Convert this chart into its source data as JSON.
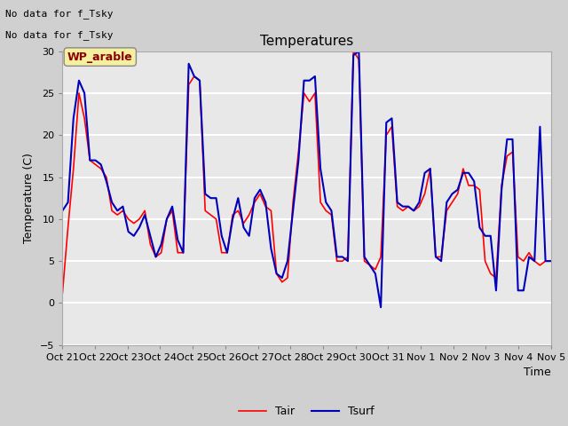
{
  "title": "Temperatures",
  "xlabel": "Time",
  "ylabel": "Temperature (C)",
  "ylim": [
    -5,
    30
  ],
  "yticks": [
    -5,
    0,
    5,
    10,
    15,
    20,
    25,
    30
  ],
  "xtick_labels": [
    "Oct 21",
    "Oct 22",
    "Oct 23",
    "Oct 24",
    "Oct 25",
    "Oct 26",
    "Oct 27",
    "Oct 28",
    "Oct 29",
    "Oct 30",
    "Oct 31",
    "Nov 1",
    "Nov 2",
    "Nov 3",
    "Nov 4",
    "Nov 5"
  ],
  "color_tair": "#ff0000",
  "color_tsurf": "#0000bb",
  "legend_labels": [
    "Tair",
    "Tsurf"
  ],
  "annotation_line1": "No data for f_Tsky",
  "annotation_line2": "No data for f_Tsky",
  "wp_label": "WP_arable",
  "fig_bg": "#d0d0d0",
  "ax_bg": "#e8e8e8",
  "tair": [
    1.2,
    9.0,
    16.0,
    25.0,
    22.0,
    17.0,
    16.5,
    16.0,
    15.0,
    11.0,
    10.5,
    11.0,
    10.0,
    9.5,
    10.0,
    11.0,
    7.0,
    5.5,
    6.0,
    10.0,
    11.0,
    6.0,
    6.0,
    26.0,
    27.0,
    26.5,
    11.0,
    10.5,
    10.0,
    6.0,
    6.0,
    10.5,
    11.0,
    9.5,
    10.5,
    12.0,
    13.0,
    11.5,
    11.0,
    3.5,
    2.5,
    3.0,
    12.0,
    18.0,
    25.0,
    24.0,
    25.0,
    12.0,
    11.0,
    10.5,
    5.0,
    5.0,
    5.5,
    30.0,
    29.0,
    5.0,
    4.5,
    4.0,
    5.5,
    20.0,
    21.0,
    11.5,
    11.0,
    11.5,
    11.0,
    11.5,
    13.0,
    16.0,
    5.5,
    5.5,
    11.0,
    12.0,
    13.0,
    16.0,
    14.0,
    14.0,
    13.5,
    5.0,
    3.5,
    3.0,
    14.0,
    17.5,
    18.0,
    5.5,
    5.0,
    6.0,
    5.0,
    4.5,
    5.0,
    5.0
  ],
  "tsurf": [
    11.0,
    12.0,
    22.0,
    26.5,
    25.0,
    17.0,
    17.0,
    16.5,
    14.5,
    12.0,
    11.0,
    11.5,
    8.5,
    8.0,
    9.0,
    10.5,
    8.0,
    5.5,
    7.0,
    10.0,
    11.5,
    7.5,
    6.0,
    28.5,
    27.0,
    26.5,
    13.0,
    12.5,
    12.5,
    8.0,
    6.0,
    10.0,
    12.5,
    9.0,
    8.0,
    12.5,
    13.5,
    12.0,
    6.5,
    3.5,
    3.0,
    5.0,
    11.0,
    17.0,
    26.5,
    26.5,
    27.0,
    16.0,
    12.0,
    11.0,
    5.5,
    5.5,
    5.0,
    29.5,
    30.0,
    5.5,
    4.5,
    3.5,
    -0.5,
    21.5,
    22.0,
    12.0,
    11.5,
    11.5,
    11.0,
    12.0,
    15.5,
    16.0,
    5.5,
    5.0,
    12.0,
    13.0,
    13.5,
    15.5,
    15.5,
    14.5,
    9.0,
    8.0,
    8.0,
    1.5,
    13.5,
    19.5,
    19.5,
    1.5,
    1.5,
    5.5,
    5.0,
    21.0,
    5.0,
    5.0
  ]
}
